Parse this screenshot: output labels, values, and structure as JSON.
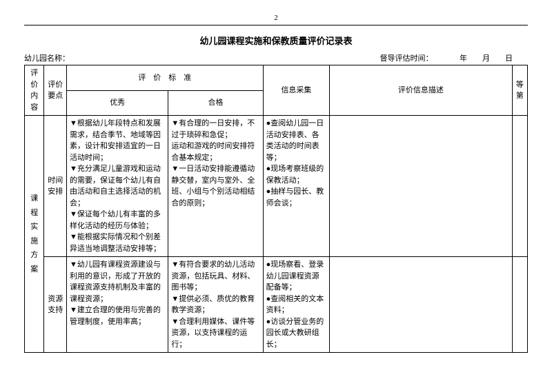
{
  "page_number": "2",
  "title": "幼儿园课程实施和保教质量评价记录表",
  "header": {
    "left_label": "幼儿园名称：",
    "right_label": "督导评估时间：",
    "year": "年",
    "month": "月",
    "day": "日"
  },
  "columns": {
    "content": "评价内容",
    "point": "评价要点",
    "standard": "评　价　标　准",
    "excellent": "优秀",
    "qualified": "合格",
    "info": "信息采集",
    "desc": "评价信息描述",
    "grade": "等第"
  },
  "category": {
    "c1": "课",
    "c2": "程",
    "c3": "实",
    "c4": "施",
    "c5": "方",
    "c6": "案"
  },
  "rows": [
    {
      "point": "时间安排",
      "excellent": "▼根据幼儿年段特点和发展需求，结合季节、地域等因素，设计和安排适宜的一日活动时间；\n▼充分满足儿童游戏和运动的需要，保证每个幼儿有自由活动和自主选择活动的机会；\n▼保证每个幼儿有丰富的多样化活动的经历与体验；\n▼能根据实际情况和个别差异适当地调整活动安排等；",
      "qualified": "▼有合理的一日安排，不过于琐碎和急促；\n运动和游戏的时间安排符合基本规定；\n▼一日活动安排能遵循动静交替，室内与室外、全班、小组与个别活动相结合的原则；",
      "info": "●查阅幼儿园一日活动安排表、各类活动的时间表等；\n●现场考察班级的保教活动；\n●抽样与园长、教师会谈；"
    },
    {
      "point": "资源支持",
      "excellent": "▼幼儿园有课程资源建设与利用的意识，形成了开放的课程资源支持机制及丰富的课程资源；\n▼建立合理的使用与完善的管理制度，使用率高；",
      "qualified": "▼有符合要求的幼儿活动资源，包括玩具、材料、图书等；\n▼提供必须、质优的教育教学资源；\n▼合理利用媒体、课件等资源，以支持课程的运行；",
      "info": "●现场察看、登录幼儿园课程资源配备等；\n●查阅相关的文本资料；\n●访谈分管业务的园长或大教研组长；"
    }
  ]
}
